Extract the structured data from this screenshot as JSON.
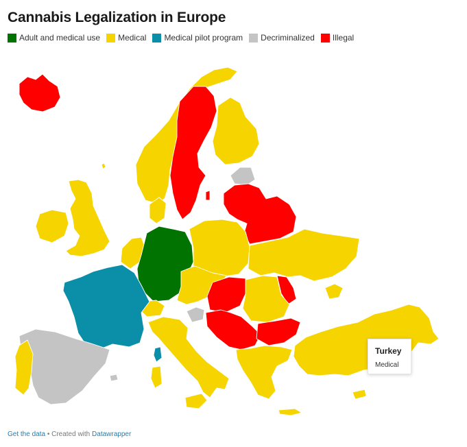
{
  "title": "Cannabis Legalization in Europe",
  "legend": [
    {
      "label": "Adult and medical use",
      "color": "#007300"
    },
    {
      "label": "Medical",
      "color": "#f5d400"
    },
    {
      "label": "Medical pilot program",
      "color": "#0b8fa8"
    },
    {
      "label": "Decriminalized",
      "color": "#c4c4c4"
    },
    {
      "label": "Illegal",
      "color": "#ff0000"
    }
  ],
  "tooltip": {
    "country": "Turkey",
    "status": "Medical"
  },
  "footer": {
    "get_data": "Get the data",
    "separator": " • Created with ",
    "tool": "Datawrapper"
  }
}
